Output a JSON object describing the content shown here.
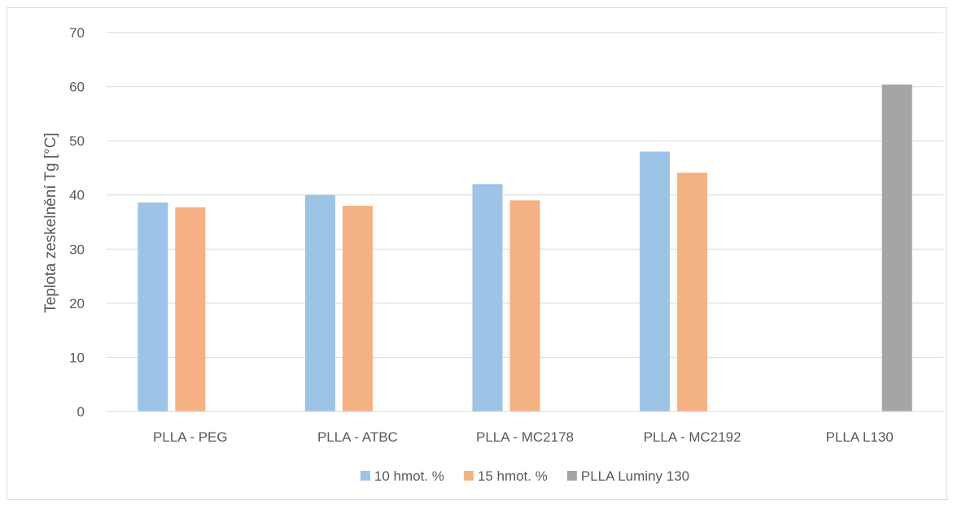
{
  "chart_data": {
    "type": "bar",
    "title": "",
    "xlabel": "",
    "ylabel": "Teplota zeskelnění Tg [°C]",
    "ylim": [
      0,
      70
    ],
    "yticks": [
      0,
      10,
      20,
      30,
      40,
      50,
      60,
      70
    ],
    "grid": true,
    "legend_position": "bottom",
    "categories": [
      "PLLA - PEG",
      "PLLA - ATBC",
      "PLLA - MC2178",
      "PLLA - MC2192",
      "PLLA L130"
    ],
    "series": [
      {
        "name": "10 hmot. %",
        "color": "#9dc3e6",
        "values": [
          38.6,
          40.0,
          42.0,
          48.0,
          null
        ]
      },
      {
        "name": "15 hmot. %",
        "color": "#f4b183",
        "values": [
          37.7,
          38.0,
          39.0,
          44.1,
          null
        ]
      },
      {
        "name": "PLLA Luminy 130",
        "color": "#a5a5a5",
        "values": [
          null,
          null,
          null,
          null,
          60.4
        ]
      }
    ]
  }
}
